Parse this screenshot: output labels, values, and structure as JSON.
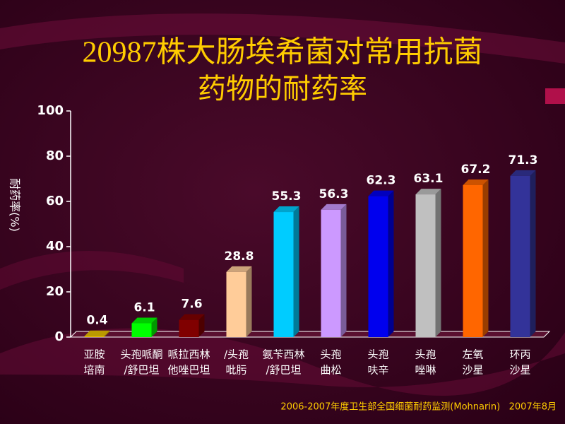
{
  "chart_data": {
    "type": "bar3d",
    "title": [
      "20987株大肠埃希菌对常用抗菌",
      "药物的耐药率"
    ],
    "y_label": "耐药率(%)",
    "categories": [
      [
        "亚胺",
        "培南"
      ],
      [
        "头孢哌酮",
        "/舒巴坦"
      ],
      [
        "哌拉西林",
        "他唑巴坦"
      ],
      [
        "/头孢",
        "吡肟"
      ],
      [
        "氨苄西林",
        "/舒巴坦"
      ],
      [
        "头孢",
        "曲松"
      ],
      [
        "头孢",
        "呋辛"
      ],
      [
        "头孢",
        "唑啉"
      ],
      [
        "左氧",
        "沙星"
      ],
      [
        "环丙",
        "沙星"
      ]
    ],
    "values": [
      0.4,
      6.1,
      7.6,
      28.8,
      55.3,
      56.3,
      62.3,
      63.1,
      67.2,
      71.3
    ],
    "colors": [
      "#e8c000",
      "#00ff00",
      "#800000",
      "#ffcc99",
      "#00ccff",
      "#cc99ff",
      "#0000ee",
      "#c0c0c0",
      "#ff6600",
      "#333399"
    ],
    "ylim": [
      0,
      100
    ],
    "yticks": [
      0,
      20,
      40,
      60,
      80,
      100
    ],
    "source": "2006-2007年度卫生部全国细菌耐药监测(Mohnarin)   2007年8月"
  }
}
